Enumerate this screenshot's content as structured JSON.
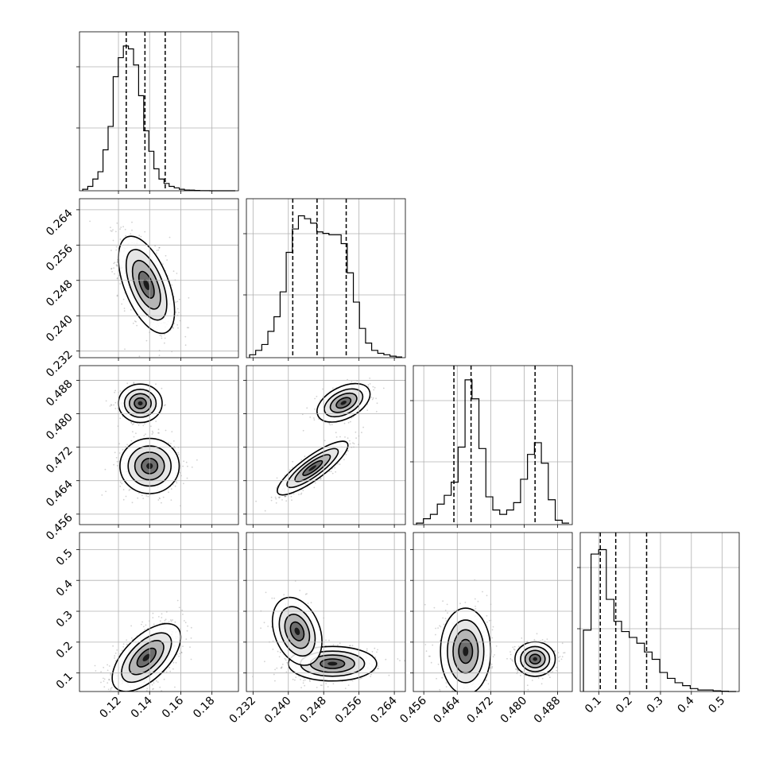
{
  "chart_data": {
    "type": "corner",
    "parameters": [
      {
        "xlim": [
          0.095,
          0.197
        ],
        "ticks": [
          0.12,
          0.14,
          0.16,
          0.18
        ],
        "tick_labels": [
          "0.12",
          "0.14",
          "0.16",
          "0.18"
        ],
        "quantiles": [
          0.125,
          0.137,
          0.15
        ],
        "hist_max": 1,
        "hist": [
          0.01,
          0.03,
          0.08,
          0.13,
          0.28,
          0.44,
          0.78,
          0.91,
          0.99,
          0.97,
          0.86,
          0.65,
          0.41,
          0.27,
          0.15,
          0.08,
          0.05,
          0.03,
          0.02,
          0.01,
          0.005,
          0.004,
          0.002,
          0.001,
          0.0005,
          0,
          0,
          0,
          0,
          0
        ]
      },
      {
        "xlim": [
          0.2305,
          0.2665
        ],
        "ticks": [
          0.232,
          0.24,
          0.248,
          0.256,
          0.264
        ],
        "tick_labels": [
          "0.232",
          "0.240",
          "0.248",
          "0.256",
          "0.264"
        ],
        "quantiles": [
          0.241,
          0.2465,
          0.2531
        ],
        "hist_max": 1,
        "hist": [
          0.02,
          0.05,
          0.09,
          0.18,
          0.28,
          0.45,
          0.72,
          0.88,
          0.97,
          0.95,
          0.92,
          0.86,
          0.85,
          0.84,
          0.84,
          0.78,
          0.58,
          0.38,
          0.2,
          0.1,
          0.05,
          0.03,
          0.02,
          0.01,
          0.005
        ]
      },
      {
        "xlim": [
          0.4535,
          0.4915
        ],
        "ticks": [
          0.456,
          0.464,
          0.472,
          0.48,
          0.488
        ],
        "tick_labels": [
          "0.456",
          "0.464",
          "0.472",
          "0.480",
          "0.488"
        ],
        "quantiles": [
          0.4632,
          0.4673,
          0.4826
        ],
        "hist_max": 1,
        "hist": [
          0.01,
          0.04,
          0.07,
          0.14,
          0.2,
          0.29,
          0.53,
          0.99,
          0.86,
          0.52,
          0.19,
          0.1,
          0.07,
          0.1,
          0.15,
          0.31,
          0.48,
          0.56,
          0.42,
          0.17,
          0.03,
          0.01
        ]
      },
      {
        "xlim": [
          0.04,
          0.555
        ],
        "ticks": [
          0.1,
          0.2,
          0.3,
          0.4,
          0.5
        ],
        "tick_labels": [
          "0.1",
          "0.2",
          "0.3",
          "0.4",
          "0.5"
        ],
        "quantiles": [
          0.105,
          0.155,
          0.255
        ],
        "hist_max": 1,
        "hist": [
          0.42,
          0.94,
          0.97,
          0.63,
          0.48,
          0.41,
          0.37,
          0.33,
          0.27,
          0.22,
          0.13,
          0.09,
          0.06,
          0.04,
          0.02,
          0.01,
          0.01,
          0.005,
          0.002,
          0
        ]
      }
    ],
    "pairs": [
      {
        "row": 1,
        "col": 0,
        "clusters": [
          {
            "mx": 0.138,
            "my": 0.247,
            "sx": 0.009,
            "sy": 0.0055,
            "rho": -0.55,
            "w": 1.0
          }
        ]
      },
      {
        "row": 2,
        "col": 0,
        "clusters": [
          {
            "mx": 0.134,
            "my": 0.4825,
            "sx": 0.007,
            "sy": 0.0023,
            "rho": 0.0,
            "w": 0.38
          },
          {
            "mx": 0.14,
            "my": 0.4675,
            "sx": 0.0095,
            "sy": 0.0033,
            "rho": 0.0,
            "w": 0.62
          }
        ]
      },
      {
        "row": 2,
        "col": 1,
        "clusters": [
          {
            "mx": 0.2455,
            "my": 0.467,
            "sx": 0.004,
            "sy": 0.0032,
            "rho": 0.85,
            "w": 0.62
          },
          {
            "mx": 0.2525,
            "my": 0.4826,
            "sx": 0.003,
            "sy": 0.0023,
            "rho": 0.45,
            "w": 0.38
          }
        ]
      },
      {
        "row": 3,
        "col": 0,
        "clusters": [
          {
            "mx": 0.138,
            "my": 0.15,
            "sx": 0.011,
            "sy": 0.055,
            "rho": 0.6,
            "w": 1.0
          }
        ]
      },
      {
        "row": 3,
        "col": 1,
        "clusters": [
          {
            "mx": 0.25,
            "my": 0.13,
            "sx": 0.005,
            "sy": 0.028,
            "rho": 0.0,
            "w": 0.62
          },
          {
            "mx": 0.242,
            "my": 0.235,
            "sx": 0.0028,
            "sy": 0.055,
            "rho": -0.3,
            "w": 0.38
          }
        ]
      },
      {
        "row": 3,
        "col": 2,
        "clusters": [
          {
            "mx": 0.466,
            "my": 0.17,
            "sx": 0.003,
            "sy": 0.07,
            "rho": 0.0,
            "w": 0.62
          },
          {
            "mx": 0.4826,
            "my": 0.145,
            "sx": 0.0024,
            "sy": 0.028,
            "rho": 0.0,
            "w": 0.38
          }
        ]
      }
    ],
    "grid": true,
    "quantile_line_style": "dashed"
  }
}
